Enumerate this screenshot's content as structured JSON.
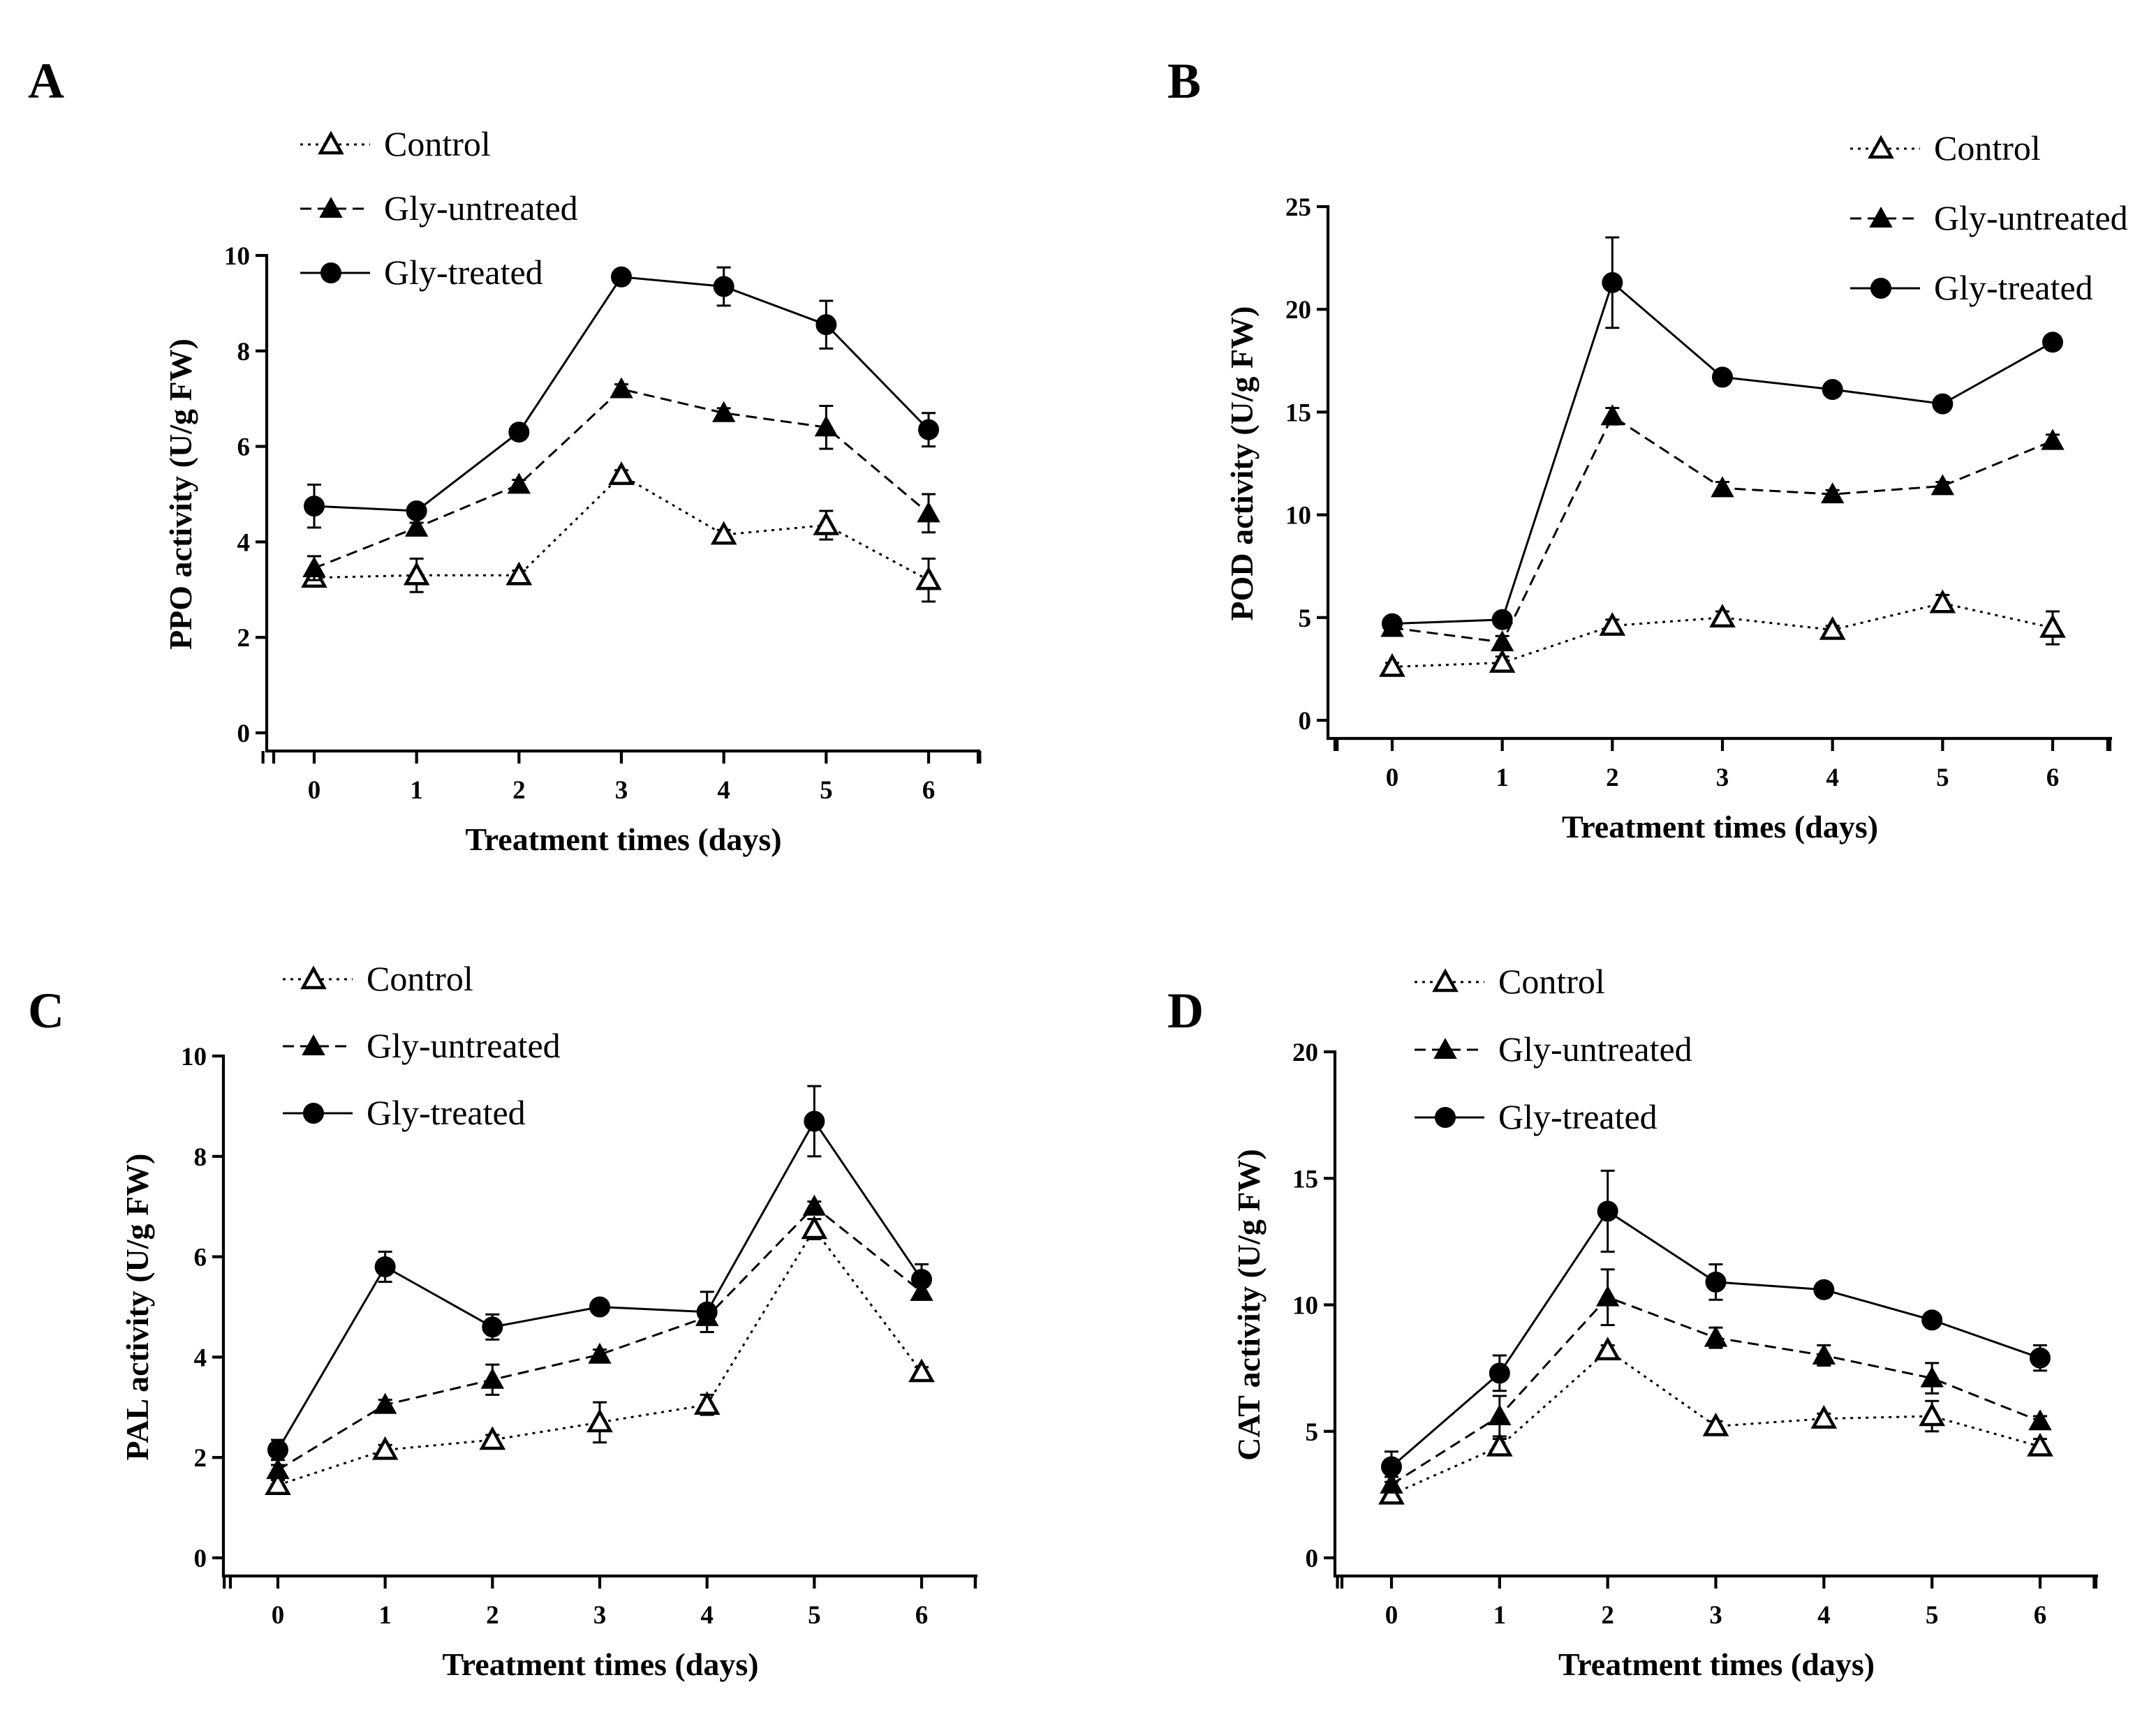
{
  "chart_data": [
    {
      "panel": "A",
      "type": "line",
      "xlabel": "Treatment times (days)",
      "ylabel": "PPO activity (U/g FW)",
      "x": [
        0,
        1,
        2,
        3,
        4,
        5,
        6
      ],
      "ylim": [
        0,
        10
      ],
      "yticks": [
        0,
        2,
        4,
        6,
        8,
        10
      ],
      "legend_position": "top-left",
      "series": [
        {
          "name": "Control",
          "marker": "open-triangle",
          "line": "dotted",
          "values": [
            3.25,
            3.3,
            3.3,
            5.4,
            4.15,
            4.35,
            3.2
          ],
          "errors": [
            0.15,
            0.35,
            0.1,
            0.1,
            0.1,
            0.3,
            0.45
          ]
        },
        {
          "name": "Gly-untreated",
          "marker": "filled-triangle",
          "line": "dashed",
          "values": [
            3.45,
            4.3,
            5.2,
            7.2,
            6.7,
            6.4,
            4.6
          ],
          "errors": [
            0.25,
            0.1,
            0.1,
            0.1,
            0.1,
            0.45,
            0.4
          ]
        },
        {
          "name": "Gly-treated",
          "marker": "filled-circle",
          "line": "solid",
          "values": [
            4.75,
            4.65,
            6.3,
            9.55,
            9.35,
            8.55,
            6.35
          ],
          "errors": [
            0.45,
            0.05,
            0.05,
            0.05,
            0.4,
            0.5,
            0.35
          ]
        }
      ]
    },
    {
      "panel": "B",
      "type": "line",
      "xlabel": "Treatment times (days)",
      "ylabel": "POD activity (U/g FW)",
      "x": [
        0,
        1,
        2,
        3,
        4,
        5,
        6
      ],
      "ylim": [
        0,
        25
      ],
      "yticks": [
        0,
        5,
        10,
        15,
        20,
        25
      ],
      "legend_position": "top-right",
      "series": [
        {
          "name": "Control",
          "marker": "open-triangle",
          "line": "dotted",
          "values": [
            2.6,
            2.8,
            4.6,
            5.0,
            4.4,
            5.7,
            4.5
          ],
          "errors": [
            0.2,
            0.3,
            0.3,
            0.3,
            0.2,
            0.4,
            0.8
          ]
        },
        {
          "name": "Gly-untreated",
          "marker": "filled-triangle",
          "line": "dashed",
          "values": [
            4.5,
            3.8,
            14.8,
            11.3,
            11.0,
            11.4,
            13.6
          ],
          "errors": [
            0.3,
            0.3,
            0.4,
            0.3,
            0.2,
            0.2,
            0.3
          ]
        },
        {
          "name": "Gly-treated",
          "marker": "filled-circle",
          "line": "solid",
          "values": [
            4.7,
            4.9,
            21.3,
            16.7,
            16.1,
            15.4,
            18.4
          ],
          "errors": [
            0.2,
            0.2,
            2.2,
            0.2,
            0.2,
            0.3,
            0.3
          ]
        }
      ]
    },
    {
      "panel": "C",
      "type": "line",
      "xlabel": "Treatment times (days)",
      "ylabel": "PAL activity (U/g FW)",
      "x": [
        0,
        1,
        2,
        3,
        4,
        5,
        6
      ],
      "ylim": [
        0,
        10
      ],
      "yticks": [
        0,
        2,
        4,
        6,
        8,
        10
      ],
      "legend_position": "top-left",
      "series": [
        {
          "name": "Control",
          "marker": "open-triangle",
          "line": "dotted",
          "values": [
            1.45,
            2.15,
            2.35,
            2.7,
            3.05,
            6.55,
            3.7
          ],
          "errors": [
            0.1,
            0.1,
            0.1,
            0.4,
            0.2,
            0.2,
            0.1
          ]
        },
        {
          "name": "Gly-untreated",
          "marker": "filled-triangle",
          "line": "dashed",
          "values": [
            1.75,
            3.05,
            3.55,
            4.05,
            4.8,
            7.0,
            5.3
          ],
          "errors": [
            0.1,
            0.1,
            0.3,
            0.1,
            0.1,
            0.1,
            0.1
          ]
        },
        {
          "name": "Gly-treated",
          "marker": "filled-circle",
          "line": "solid",
          "values": [
            2.15,
            5.8,
            4.6,
            5.0,
            4.9,
            8.7,
            5.55
          ],
          "errors": [
            0.2,
            0.3,
            0.25,
            0.1,
            0.4,
            0.7,
            0.3
          ]
        }
      ]
    },
    {
      "panel": "D",
      "type": "line",
      "xlabel": "Treatment times (days)",
      "ylabel": "CAT activity (U/g FW)",
      "x": [
        0,
        1,
        2,
        3,
        4,
        5,
        6
      ],
      "ylim": [
        0,
        20
      ],
      "yticks": [
        0,
        5,
        10,
        15,
        20
      ],
      "legend_position": "top-left",
      "series": [
        {
          "name": "Control",
          "marker": "open-triangle",
          "line": "dotted",
          "values": [
            2.5,
            4.4,
            8.2,
            5.2,
            5.5,
            5.6,
            4.4
          ],
          "errors": [
            0.2,
            0.3,
            0.2,
            0.2,
            0.2,
            0.6,
            0.3
          ]
        },
        {
          "name": "Gly-untreated",
          "marker": "filled-triangle",
          "line": "dashed",
          "values": [
            2.9,
            5.6,
            10.3,
            8.7,
            8.0,
            7.1,
            5.4
          ],
          "errors": [
            0.3,
            0.8,
            1.1,
            0.4,
            0.4,
            0.6,
            0.2
          ]
        },
        {
          "name": "Gly-treated",
          "marker": "filled-circle",
          "line": "solid",
          "values": [
            3.6,
            7.3,
            13.7,
            10.9,
            10.6,
            9.4,
            7.9
          ],
          "errors": [
            0.6,
            0.7,
            1.6,
            0.7,
            0.2,
            0.2,
            0.5
          ]
        }
      ]
    }
  ]
}
